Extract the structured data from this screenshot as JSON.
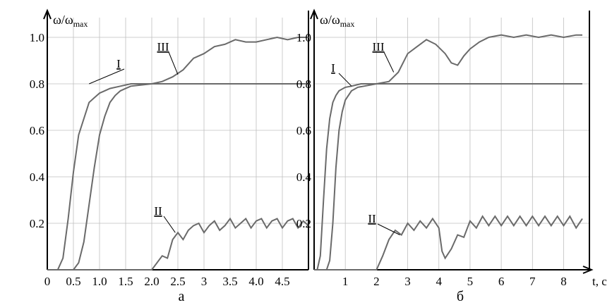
{
  "figure": {
    "panels": [
      "a",
      "б"
    ]
  },
  "chart_data": [
    {
      "type": "line",
      "panel_label": "а",
      "ylabel_main": "ω/ω",
      "ylabel_sub": "max",
      "xlabel": "",
      "xlim": [
        0,
        5.0
      ],
      "ylim": [
        0,
        1.05
      ],
      "x_ticks": [
        0,
        0.5,
        1.0,
        1.5,
        2.0,
        2.5,
        3,
        3.5,
        4.0,
        4.5
      ],
      "x_tick_labels": [
        "0",
        "0.5",
        "1.0",
        "1.5",
        "2.0",
        "2.5",
        "3",
        "3.5",
        "4.0",
        "4.5"
      ],
      "y_ticks": [
        0.2,
        0.4,
        0.6,
        0.8,
        1.0
      ],
      "y_tick_labels": [
        "0.2",
        "0.4",
        "0.6",
        "0.8",
        "1.0"
      ],
      "grid": true,
      "series": [
        {
          "name": "I",
          "x": [
            0,
            0.2,
            0.3,
            0.4,
            0.5,
            0.6,
            0.7,
            0.8,
            0.9,
            1.0,
            1.1,
            1.2,
            1.4,
            1.6,
            1.8,
            2.0,
            2.5,
            3.0,
            4.0,
            5.0
          ],
          "y": [
            0,
            0,
            0.05,
            0.22,
            0.42,
            0.58,
            0.65,
            0.72,
            0.74,
            0.76,
            0.77,
            0.78,
            0.79,
            0.8,
            0.8,
            0.8,
            0.8,
            0.8,
            0.8,
            0.8
          ]
        },
        {
          "name": "II",
          "x": [
            0,
            2.0,
            2.2,
            2.3,
            2.4,
            2.5,
            2.6,
            2.7,
            2.8,
            2.9,
            3.0,
            3.1,
            3.2,
            3.3,
            3.4,
            3.5,
            3.6,
            3.7,
            3.8,
            3.9,
            4.0,
            4.1,
            4.2,
            4.3,
            4.4,
            4.5,
            4.6,
            4.7,
            4.8,
            4.9,
            5.0
          ],
          "y": [
            0,
            0,
            0.06,
            0.05,
            0.13,
            0.16,
            0.13,
            0.17,
            0.19,
            0.2,
            0.16,
            0.19,
            0.21,
            0.17,
            0.19,
            0.22,
            0.18,
            0.2,
            0.22,
            0.18,
            0.21,
            0.22,
            0.18,
            0.21,
            0.22,
            0.18,
            0.21,
            0.22,
            0.18,
            0.21,
            0.19
          ]
        },
        {
          "name": "III",
          "x": [
            0,
            0.5,
            0.6,
            0.7,
            0.8,
            0.9,
            1.0,
            1.1,
            1.2,
            1.3,
            1.4,
            1.5,
            1.6,
            1.8,
            2.0,
            2.2,
            2.4,
            2.6,
            2.8,
            3.0,
            3.2,
            3.4,
            3.6,
            3.8,
            4.0,
            4.2,
            4.4,
            4.6,
            4.8,
            5.0
          ],
          "y": [
            0,
            0,
            0.03,
            0.12,
            0.28,
            0.44,
            0.58,
            0.66,
            0.72,
            0.75,
            0.77,
            0.78,
            0.79,
            0.795,
            0.8,
            0.81,
            0.83,
            0.86,
            0.91,
            0.93,
            0.96,
            0.97,
            0.99,
            0.98,
            0.98,
            0.99,
            1.0,
            0.99,
            1.0,
            1.0
          ]
        }
      ],
      "curve_labels": [
        {
          "text": "I",
          "series": "I"
        },
        {
          "text": "II",
          "series": "II"
        },
        {
          "text": "III",
          "series": "III"
        }
      ]
    },
    {
      "type": "line",
      "panel_label": "б",
      "ylabel_main": "ω/ω",
      "ylabel_sub": "max",
      "xlabel": "t, c",
      "xlim": [
        0,
        8.6
      ],
      "ylim": [
        0,
        1.05
      ],
      "x_ticks": [
        1,
        2,
        3,
        4,
        5,
        6,
        7,
        8
      ],
      "x_tick_labels": [
        "1",
        "2",
        "3",
        "4",
        "5",
        "6",
        "7",
        "8"
      ],
      "y_ticks": [
        0.2,
        0.4,
        0.6,
        0.8,
        1.0
      ],
      "y_tick_labels": [
        "0.2",
        "0.4",
        "0.6",
        "0.8",
        "1.0"
      ],
      "grid": true,
      "series": [
        {
          "name": "I",
          "x": [
            0,
            0.1,
            0.2,
            0.3,
            0.4,
            0.5,
            0.6,
            0.7,
            0.8,
            1.0,
            1.2,
            1.5,
            2.0,
            3.0,
            5.0,
            8.6
          ],
          "y": [
            0,
            0,
            0.06,
            0.3,
            0.52,
            0.65,
            0.72,
            0.75,
            0.77,
            0.785,
            0.79,
            0.8,
            0.8,
            0.8,
            0.8,
            0.8
          ]
        },
        {
          "name": "II",
          "x": [
            0,
            2.0,
            2.2,
            2.4,
            2.6,
            2.8,
            3.0,
            3.2,
            3.4,
            3.6,
            3.8,
            4.0,
            4.1,
            4.2,
            4.4,
            4.6,
            4.8,
            5.0,
            5.2,
            5.4,
            5.6,
            5.8,
            6.0,
            6.2,
            6.4,
            6.6,
            6.8,
            7.0,
            7.2,
            7.4,
            7.6,
            7.8,
            8.0,
            8.2,
            8.4,
            8.6
          ],
          "y": [
            0,
            0,
            0.06,
            0.13,
            0.17,
            0.15,
            0.2,
            0.17,
            0.21,
            0.18,
            0.22,
            0.18,
            0.08,
            0.05,
            0.09,
            0.15,
            0.14,
            0.21,
            0.18,
            0.23,
            0.19,
            0.23,
            0.19,
            0.23,
            0.19,
            0.23,
            0.19,
            0.23,
            0.19,
            0.23,
            0.19,
            0.23,
            0.19,
            0.23,
            0.18,
            0.22
          ]
        },
        {
          "name": "III",
          "x": [
            0,
            0.4,
            0.5,
            0.6,
            0.7,
            0.8,
            0.9,
            1.0,
            1.2,
            1.4,
            1.6,
            2.0,
            2.4,
            2.7,
            3.0,
            3.3,
            3.6,
            3.9,
            4.2,
            4.4,
            4.6,
            4.8,
            5.0,
            5.3,
            5.6,
            6.0,
            6.4,
            6.8,
            7.2,
            7.6,
            8.0,
            8.4,
            8.6
          ],
          "y": [
            0,
            0,
            0.04,
            0.2,
            0.44,
            0.6,
            0.68,
            0.73,
            0.77,
            0.785,
            0.79,
            0.8,
            0.81,
            0.85,
            0.93,
            0.96,
            0.99,
            0.97,
            0.93,
            0.89,
            0.88,
            0.92,
            0.95,
            0.98,
            1.0,
            1.01,
            1.0,
            1.01,
            1.0,
            1.01,
            1.0,
            1.01,
            1.01
          ]
        }
      ],
      "curve_labels": [
        {
          "text": "I",
          "series": "I"
        },
        {
          "text": "II",
          "series": "II"
        },
        {
          "text": "III",
          "series": "III"
        }
      ]
    }
  ]
}
